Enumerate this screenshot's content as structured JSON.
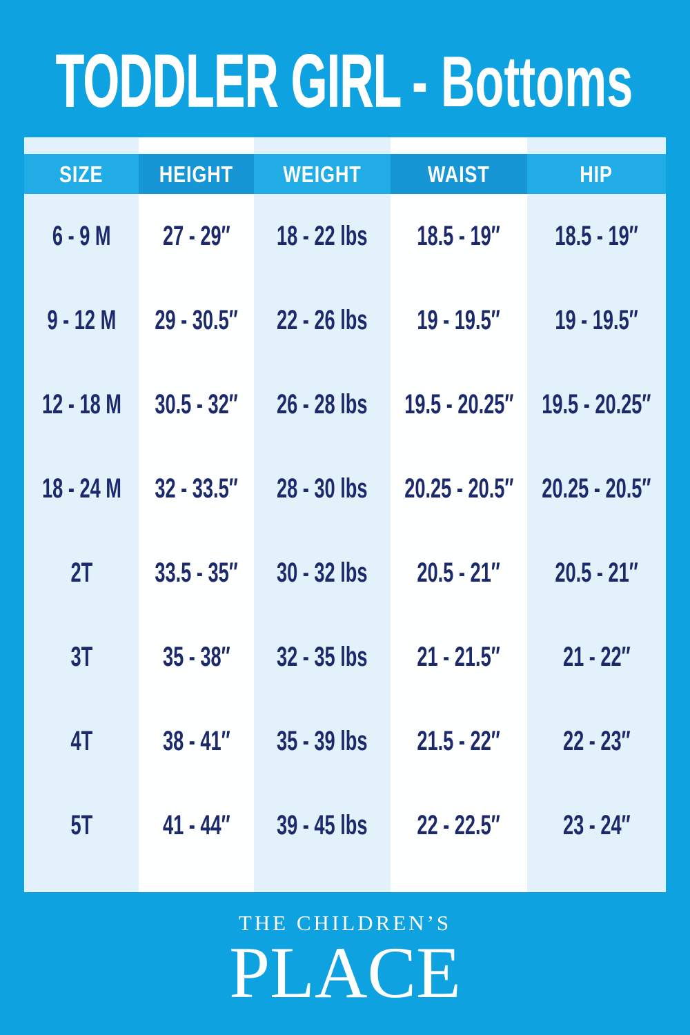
{
  "title": {
    "main": "TODDLER GIRL",
    "sub": "- Bottoms"
  },
  "chart_data": {
    "type": "table",
    "title": "TODDLER GIRL - Bottoms",
    "columns": [
      "SIZE",
      "HEIGHT",
      "WEIGHT",
      "WAIST",
      "HIP"
    ],
    "rows": [
      [
        "6 - 9 M",
        "27 - 29″",
        "18 - 22 lbs",
        "18.5 - 19″",
        "18.5 - 19″"
      ],
      [
        "9 - 12 M",
        "29 - 30.5″",
        "22 - 26 lbs",
        "19 - 19.5″",
        "19 - 19.5″"
      ],
      [
        "12 - 18 M",
        "30.5 - 32″",
        "26 - 28 lbs",
        "19.5 - 20.25″",
        "19.5 - 20.25″"
      ],
      [
        "18 - 24 M",
        "32 - 33.5″",
        "28 - 30 lbs",
        "20.25 - 20.5″",
        "20.25 - 20.5″"
      ],
      [
        "2T",
        "33.5 - 35″",
        "30 - 32 lbs",
        "20.5 - 21″",
        "20.5 - 21″"
      ],
      [
        "3T",
        "35 - 38″",
        "32 - 35 lbs",
        "21 - 21.5″",
        "21 - 22″"
      ],
      [
        "4T",
        "38 - 41″",
        "35 - 39 lbs",
        "21.5 - 22″",
        "22 - 23″"
      ],
      [
        "5T",
        "41 - 44″",
        "39 - 45 lbs",
        "22 - 22.5″",
        "23 - 24″"
      ]
    ]
  },
  "footer": {
    "brand_line1": "THE CHILDREN’S",
    "brand_line2": "PLACE"
  },
  "colors": {
    "background": "#0FA2E0",
    "header_cell_light": "#22ACE5",
    "header_cell_dark": "#1696D4",
    "column_light": "#E2F1FA",
    "column_white": "#FEFFFF",
    "cell_text": "#1C2A6B",
    "header_text": "#FFFFFF",
    "title_text": "#FFFFFF"
  }
}
